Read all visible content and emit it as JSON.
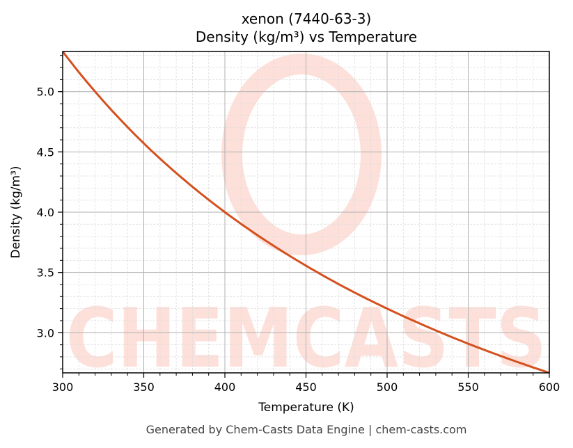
{
  "chart": {
    "title_line1": "xenon (7440-63-3)",
    "title_line2": "Density (kg/m³) vs Temperature",
    "xlabel": "Temperature (K)",
    "ylabel": "Density (kg/m³)",
    "footer": "Generated by Chem-Casts Data Engine | chem-casts.com",
    "watermark": "CHEMCASTS",
    "colors": {
      "line": "#d4501e",
      "watermark": "#fde0da",
      "major_grid": "#b0b0b0",
      "minor_grid": "#dddddd"
    }
  },
  "chart_data": {
    "type": "line",
    "title": "xenon (7440-63-3)\nDensity (kg/m³) vs Temperature",
    "xlabel": "Temperature (K)",
    "ylabel": "Density (kg/m³)",
    "xlim": [
      300,
      600
    ],
    "ylim": [
      2.667,
      5.333
    ],
    "xticks": [
      300,
      350,
      400,
      450,
      500,
      550,
      600
    ],
    "yticks": [
      3.0,
      3.5,
      4.0,
      4.5,
      5.0
    ],
    "grid": true,
    "legend": null,
    "series": [
      {
        "name": "Density",
        "x": [
          300,
          325,
          350,
          375,
          400,
          425,
          450,
          475,
          500,
          525,
          550,
          575,
          600
        ],
        "y": [
          5.333,
          4.923,
          4.571,
          4.267,
          4.0,
          3.765,
          3.556,
          3.368,
          3.2,
          3.048,
          2.909,
          2.783,
          2.667
        ]
      }
    ]
  }
}
